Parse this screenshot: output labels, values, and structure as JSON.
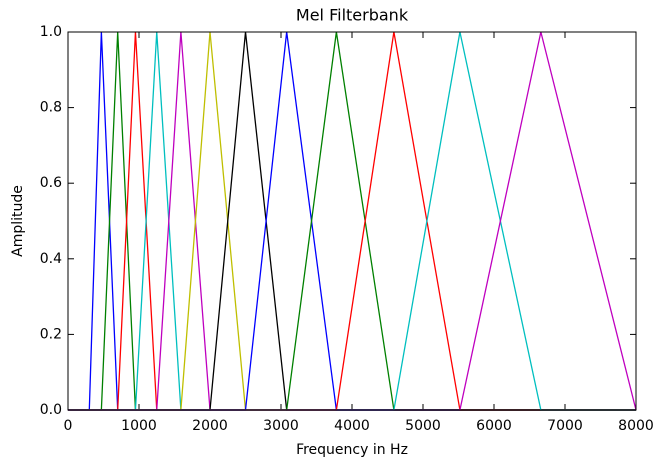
{
  "chart_data": {
    "type": "line",
    "title": "Mel Filterbank",
    "xlabel": "Frequency in Hz",
    "ylabel": "Amplitude",
    "x": [
      0,
      300,
      470,
      700,
      950,
      1250,
      1590,
      2000,
      2500,
      3080,
      3780,
      4590,
      5520,
      6660,
      8000
    ],
    "series": [
      {
        "color": "#0000ff",
        "values": [
          0,
          0,
          1,
          0,
          0,
          0,
          0,
          0,
          0,
          0,
          0,
          0,
          0,
          0,
          0
        ]
      },
      {
        "color": "#008000",
        "values": [
          0,
          0,
          0,
          1,
          0,
          0,
          0,
          0,
          0,
          0,
          0,
          0,
          0,
          0,
          0
        ]
      },
      {
        "color": "#ff0000",
        "values": [
          0,
          0,
          0,
          0,
          1,
          0,
          0,
          0,
          0,
          0,
          0,
          0,
          0,
          0,
          0
        ]
      },
      {
        "color": "#00bfbf",
        "values": [
          0,
          0,
          0,
          0,
          0,
          1,
          0,
          0,
          0,
          0,
          0,
          0,
          0,
          0,
          0
        ]
      },
      {
        "color": "#bf00bf",
        "values": [
          0,
          0,
          0,
          0,
          0,
          0,
          1,
          0,
          0,
          0,
          0,
          0,
          0,
          0,
          0
        ]
      },
      {
        "color": "#bfbf00",
        "values": [
          0,
          0,
          0,
          0,
          0,
          0,
          0,
          1,
          0,
          0,
          0,
          0,
          0,
          0,
          0
        ]
      },
      {
        "color": "#000000",
        "values": [
          0,
          0,
          0,
          0,
          0,
          0,
          0,
          0,
          1,
          0,
          0,
          0,
          0,
          0,
          0
        ]
      },
      {
        "color": "#0000ff",
        "values": [
          0,
          0,
          0,
          0,
          0,
          0,
          0,
          0,
          0,
          1,
          0,
          0,
          0,
          0,
          0
        ]
      },
      {
        "color": "#008000",
        "values": [
          0,
          0,
          0,
          0,
          0,
          0,
          0,
          0,
          0,
          0,
          1,
          0,
          0,
          0,
          0
        ]
      },
      {
        "color": "#ff0000",
        "values": [
          0,
          0,
          0,
          0,
          0,
          0,
          0,
          0,
          0,
          0,
          0,
          1,
          0,
          0,
          0
        ]
      },
      {
        "color": "#00bfbf",
        "values": [
          0,
          0,
          0,
          0,
          0,
          0,
          0,
          0,
          0,
          0,
          0,
          0,
          1,
          0,
          0
        ]
      },
      {
        "color": "#bf00bf",
        "values": [
          0,
          0,
          0,
          0,
          0,
          0,
          0,
          0,
          0,
          0,
          0,
          0,
          0,
          1,
          0
        ]
      }
    ],
    "xlim": [
      0,
      8000
    ],
    "xticks": [
      0,
      1000,
      2000,
      3000,
      4000,
      5000,
      6000,
      7000,
      8000
    ],
    "ylim": [
      0,
      1
    ],
    "yticks": [
      {
        "value": 0,
        "label": "0.0"
      },
      0.2,
      0.4,
      0.6,
      0.8,
      {
        "value": 1,
        "label": "1.0"
      }
    ],
    "grid": false
  }
}
